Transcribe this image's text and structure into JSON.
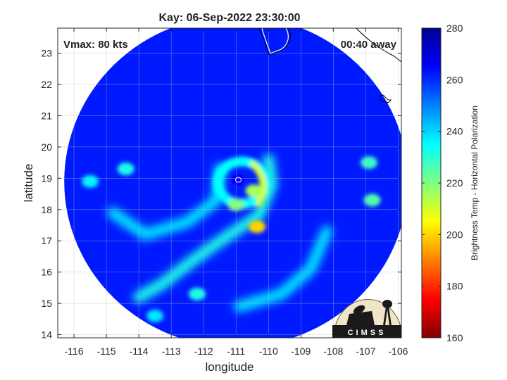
{
  "chart_data": {
    "type": "heatmap",
    "title": "Kay: 06-Sep-2022 23:30:00",
    "xlabel": "longitude",
    "ylabel": "latitude",
    "xlim": [
      -116.5,
      -105.9
    ],
    "ylim": [
      13.9,
      23.8
    ],
    "xticks": [
      -116,
      -115,
      -114,
      -113,
      -112,
      -111,
      -110,
      -109,
      -108,
      -107,
      -106
    ],
    "yticks": [
      14,
      15,
      16,
      17,
      18,
      19,
      20,
      21,
      22,
      23
    ],
    "grid": true,
    "annotations": {
      "vmax": "Vmax: 80 kts",
      "away": "00:40 away"
    },
    "colorbar": {
      "label": "Brightness Temp - Horizontal Polarization",
      "min": 160,
      "max": 280,
      "ticks": [
        160,
        180,
        200,
        220,
        240,
        260,
        280
      ],
      "colormap": [
        "#7f0000",
        "#ff0000",
        "#ff8000",
        "#ffff00",
        "#80ff80",
        "#00ffff",
        "#0080ff",
        "#0000ff",
        "#00008f"
      ]
    },
    "swath": {
      "center": [
        -111.0,
        18.9
      ],
      "radius_deg": 5.3,
      "background_temp": 262
    },
    "storm": {
      "eye": [
        -110.95,
        18.95
      ],
      "eye_temp": 265,
      "eyewall_peak_temp": 210,
      "rainbands": [
        {
          "points": [
            [
              -110.0,
              19.6
            ],
            [
              -109.9,
              18.8
            ],
            [
              -110.3,
              17.8
            ],
            [
              -111.2,
              17.2
            ],
            [
              -112.3,
              16.4
            ],
            [
              -113.3,
              15.6
            ],
            [
              -114.0,
              15.2
            ]
          ],
          "temp": 232
        },
        {
          "points": [
            [
              -111.5,
              19.3
            ],
            [
              -111.6,
              18.3
            ],
            [
              -112.5,
              17.6
            ],
            [
              -113.8,
              17.2
            ],
            [
              -114.8,
              17.9
            ]
          ],
          "temp": 238
        },
        {
          "points": [
            [
              -110.9,
              14.9
            ],
            [
              -109.6,
              15.3
            ],
            [
              -108.7,
              16.1
            ],
            [
              -108.2,
              17.3
            ]
          ],
          "temp": 238
        }
      ],
      "cells": [
        {
          "lon": -110.35,
          "lat": 17.45,
          "temp": 200
        },
        {
          "lon": -110.45,
          "lat": 18.6,
          "temp": 215
        },
        {
          "lon": -111.0,
          "lat": 18.15,
          "temp": 220
        },
        {
          "lon": -114.4,
          "lat": 19.3,
          "temp": 232
        },
        {
          "lon": -115.5,
          "lat": 18.9,
          "temp": 236
        },
        {
          "lon": -106.9,
          "lat": 19.5,
          "temp": 228
        },
        {
          "lon": -106.8,
          "lat": 18.3,
          "temp": 225
        },
        {
          "lon": -112.2,
          "lat": 15.3,
          "temp": 232
        },
        {
          "lon": -113.5,
          "lat": 14.6,
          "temp": 238
        }
      ]
    },
    "logo": {
      "text": "CIMSS"
    }
  }
}
